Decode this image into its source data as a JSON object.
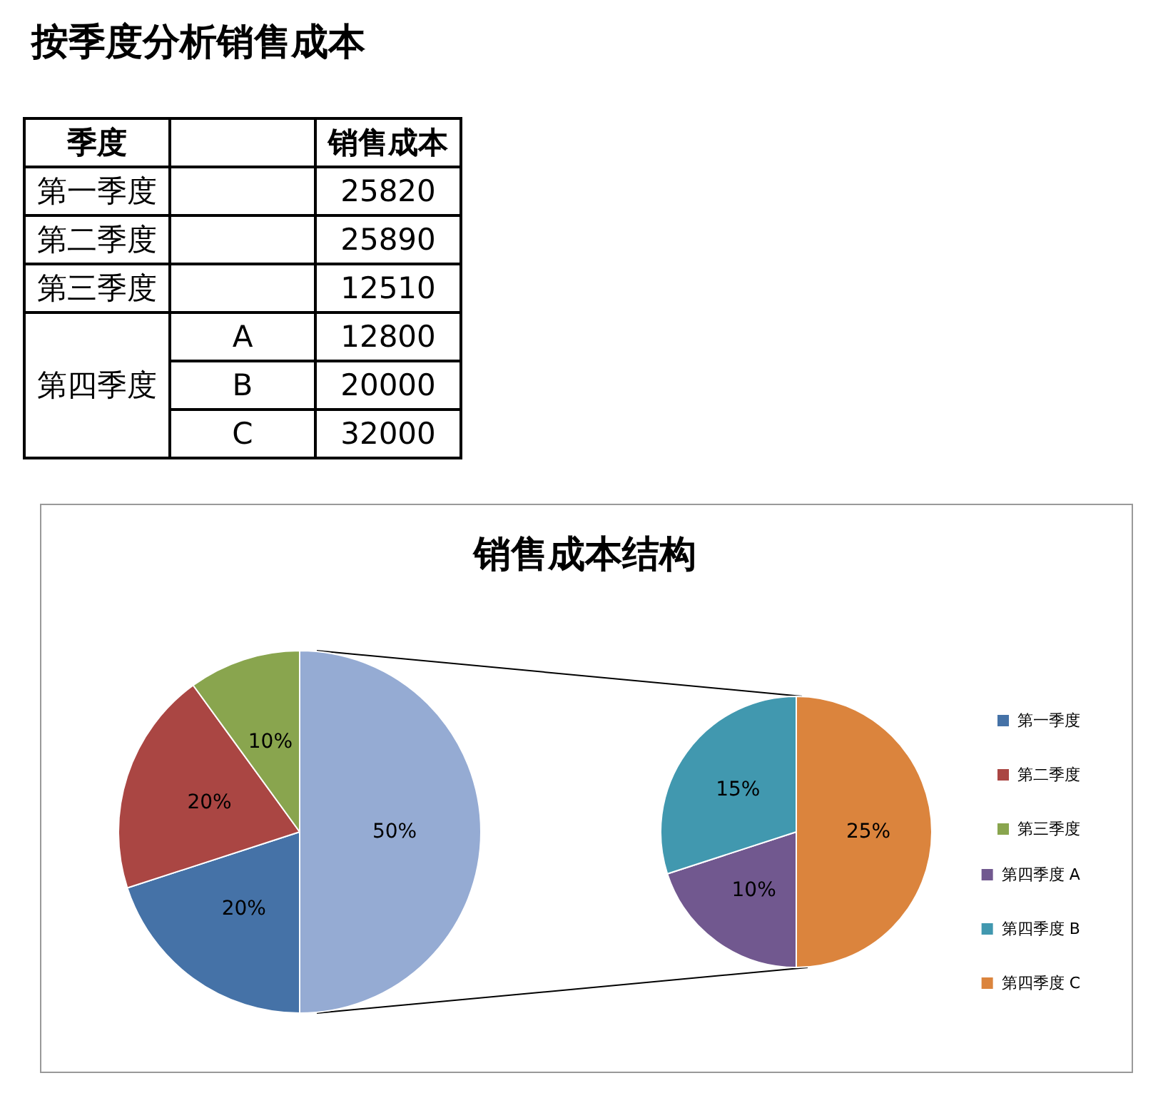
{
  "chart_data": [
    {
      "type": "other",
      "title": "按季度分析销售成本",
      "annotations": [
        "季度",
        "销售成本",
        "第一季度",
        "25820",
        "第二季度",
        "25890",
        "第三季度",
        "12510",
        "第四季度",
        "A",
        "12800",
        "B",
        "20000",
        "C",
        "32000"
      ]
    },
    {
      "type": "pie",
      "title": "销售成本结构",
      "categories": [
        "第一季度",
        "第二季度",
        "第三季度",
        null
      ],
      "values": [
        20,
        20,
        10,
        50
      ],
      "colors": [
        "#4572a7",
        "#aa4643",
        "#89a54e",
        "#95abd3"
      ],
      "value_labels": [
        "20%",
        "20%",
        "10%",
        "50%"
      ],
      "legend": "right"
    },
    {
      "type": "pie",
      "categories": [
        "第四季度 A",
        "第四季度 B",
        "第四季度 C"
      ],
      "values": [
        10,
        15,
        25
      ],
      "colors": [
        "#71588f",
        "#4198af",
        "#db843d"
      ],
      "value_labels": [
        "10%",
        "15%",
        "25%"
      ],
      "legend": "right"
    }
  ]
}
